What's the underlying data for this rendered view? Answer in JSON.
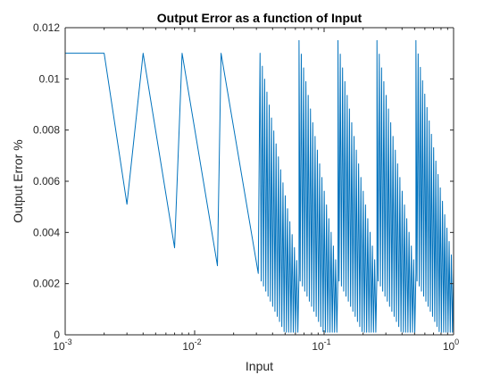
{
  "chart_data": {
    "type": "line",
    "title": "Output Error as a function of Input",
    "xlabel": "Input",
    "ylabel": "Output Error %",
    "x_scale": "log",
    "xlim": [
      0.001,
      1
    ],
    "ylim": [
      0,
      0.012
    ],
    "x_ticks": [
      {
        "value": 0.001,
        "base": "10",
        "exponent": "-3"
      },
      {
        "value": 0.01,
        "base": "10",
        "exponent": "-2"
      },
      {
        "value": 0.1,
        "base": "10",
        "exponent": "-1"
      },
      {
        "value": 1,
        "base": "10",
        "exponent": "0"
      }
    ],
    "y_ticks": [
      {
        "value": 0,
        "label": "0"
      },
      {
        "value": 0.002,
        "label": "0.002"
      },
      {
        "value": 0.004,
        "label": "0.004"
      },
      {
        "value": 0.006,
        "label": "0.006"
      },
      {
        "value": 0.008,
        "label": "0.008"
      },
      {
        "value": 0.01,
        "label": "0.01"
      },
      {
        "value": 0.012,
        "label": "0.012"
      }
    ],
    "grid": false,
    "box": true,
    "line_color": "#0072BD",
    "series": [
      {
        "name": "",
        "x": [
          0.001,
          0.002,
          0.003,
          0.004,
          0.007,
          0.008,
          0.015,
          0.016,
          0.031,
          0.032,
          0.0625,
          0.064,
          0.125,
          0.128,
          0.25,
          0.256,
          0.5,
          0.512,
          1.0
        ],
        "y": [
          0.011,
          0.011,
          0.0051,
          0.011,
          0.0034,
          0.011,
          0.0027,
          0.011,
          0.0024,
          0.011,
          0.0025,
          0.0115,
          0.0025,
          0.0115,
          0.0025,
          0.0115,
          0.0025,
          0.0115,
          0.0025
        ],
        "oscillation_band": [
          {
            "x_from": 0.032,
            "x_to": 0.064,
            "min_from": 0.0022,
            "min_to": 0.0001,
            "max_from": 0.011,
            "max_to": 0.0024
          },
          {
            "x_from": 0.064,
            "x_to": 0.128,
            "min_from": 0.0022,
            "min_to": 0.0001,
            "max_from": 0.0115,
            "max_to": 0.0024
          },
          {
            "x_from": 0.128,
            "x_to": 0.256,
            "min_from": 0.0022,
            "min_to": 0.0001,
            "max_from": 0.0115,
            "max_to": 0.0024
          },
          {
            "x_from": 0.256,
            "x_to": 0.512,
            "min_from": 0.0022,
            "min_to": 0.0001,
            "max_from": 0.0115,
            "max_to": 0.0024
          },
          {
            "x_from": 0.512,
            "x_to": 1.0,
            "min_from": 0.0022,
            "min_to": 0.0001,
            "max_from": 0.0115,
            "max_to": 0.0026
          }
        ]
      }
    ]
  }
}
